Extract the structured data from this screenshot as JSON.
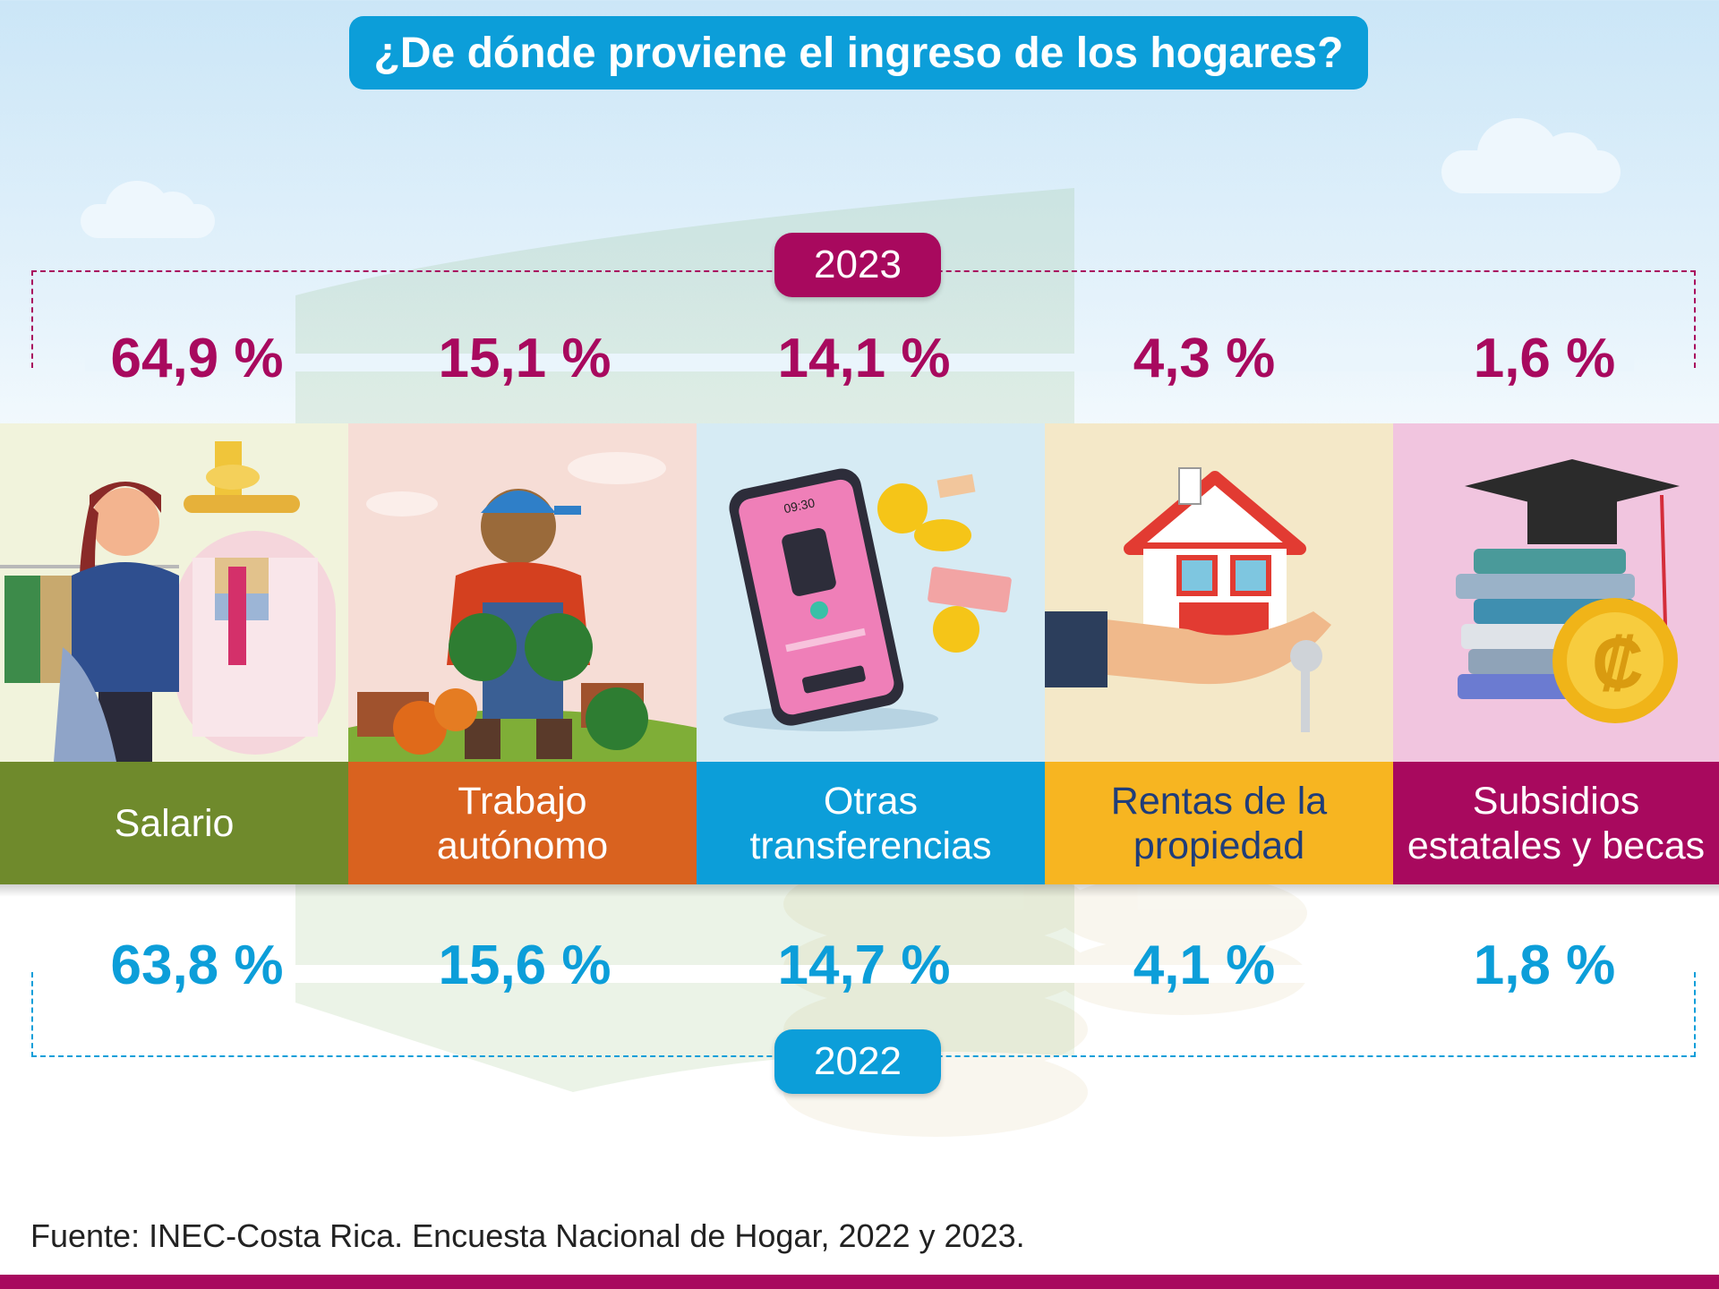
{
  "title": "¿De dónde proviene el ingreso de los hogares?",
  "year_top": "2023",
  "year_bottom": "2022",
  "source": "Fuente: INEC-Costa Rica. Encuesta Nacional de Hogar,  2022 y 2023.",
  "colors": {
    "title_bg": "#0c9ed9",
    "year_2023": "#a8095e",
    "year_2022": "#0c9ed9",
    "salario": "#6f8a2c",
    "trabajo": "#d9621f",
    "otras": "#0c9ed9",
    "rentas": "#f7b521",
    "subsidios": "#a8095e"
  },
  "categories": [
    {
      "label": "Salario",
      "pct_2023": "64,9 %",
      "pct_2022": "63,8 %",
      "icon": "clothing-store-worker-icon"
    },
    {
      "label": "Trabajo\nautónomo",
      "pct_2023": "15,1 %",
      "pct_2022": "15,6 %",
      "icon": "farmer-icon"
    },
    {
      "label": "Otras\ntransferencias",
      "pct_2023": "14,1 %",
      "pct_2022": "14,7 %",
      "icon": "phone-payment-icon"
    },
    {
      "label": "Rentas de la\npropiedad",
      "pct_2023": "4,3 %",
      "pct_2022": "4,1 %",
      "icon": "house-in-hand-icon"
    },
    {
      "label": "Subsidios\nestatales y becas",
      "pct_2023": "1,6 %",
      "pct_2022": "1,8 %",
      "icon": "books-graduation-cap-icon"
    }
  ],
  "chart_data": {
    "type": "table",
    "title": "¿De dónde proviene el ingreso de los hogares?",
    "categories": [
      "Salario",
      "Trabajo autónomo",
      "Otras transferencias",
      "Rentas de la propiedad",
      "Subsidios estatales y becas"
    ],
    "series": [
      {
        "name": "2023",
        "values": [
          64.9,
          15.1,
          14.1,
          4.3,
          1.6
        ]
      },
      {
        "name": "2022",
        "values": [
          63.8,
          15.6,
          14.7,
          4.1,
          1.8
        ]
      }
    ],
    "unit": "%"
  }
}
